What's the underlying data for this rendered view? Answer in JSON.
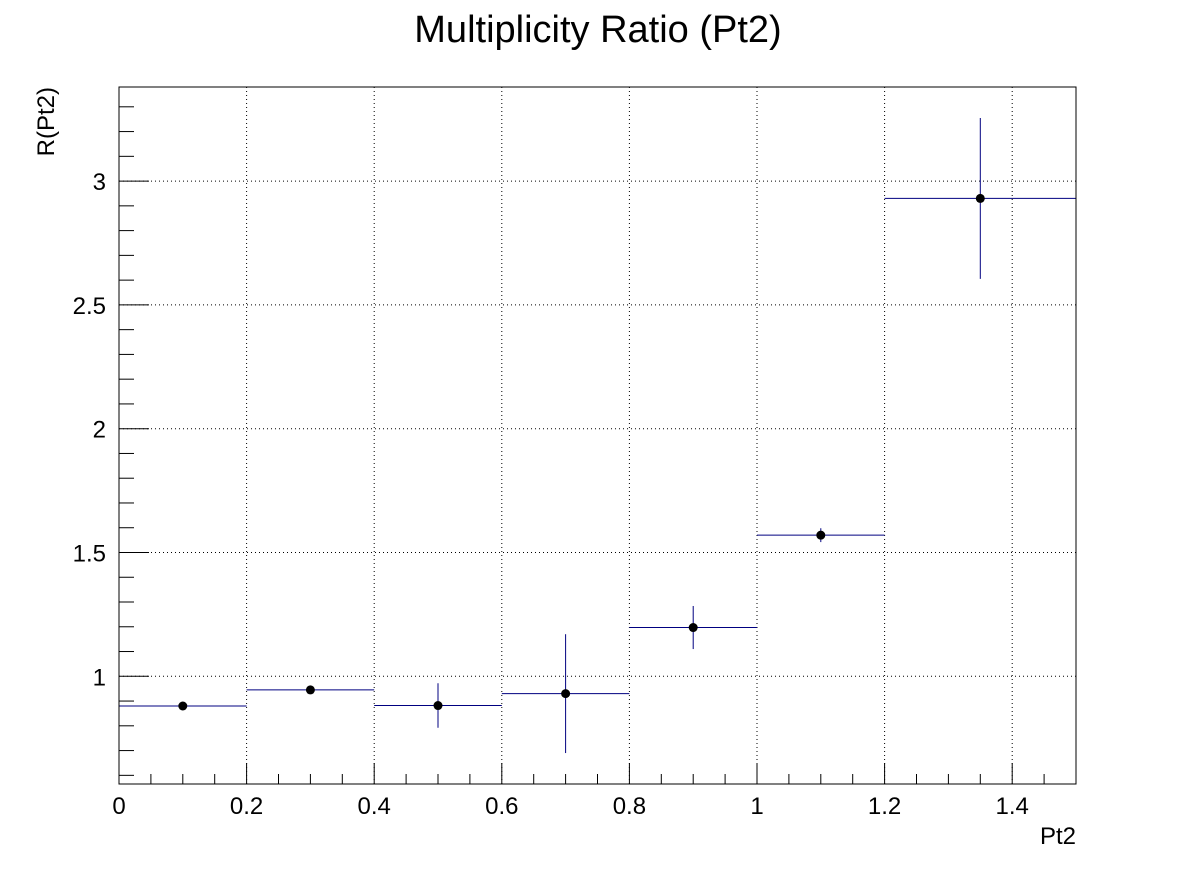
{
  "chart_data": {
    "type": "scatter",
    "title": "Multiplicity Ratio (Pt2)",
    "xlabel": "Pt2",
    "ylabel": "R(Pt2)",
    "xlim": [
      0,
      1.5
    ],
    "ylim": [
      0.565,
      3.38
    ],
    "grid": true,
    "x_ticks": [
      "0",
      "0.2",
      "0.4",
      "0.6",
      "0.8",
      "1",
      "1.2",
      "1.4"
    ],
    "y_ticks": [
      "1",
      "1.5",
      "2",
      "2.5",
      "3"
    ],
    "series": [
      {
        "marker_color": "#000000",
        "error_bar_color": "#000080",
        "points": [
          {
            "x": 0.1,
            "x_low": 0.0,
            "x_high": 0.2,
            "y": 0.88,
            "y_err": 0.012
          },
          {
            "x": 0.3,
            "x_low": 0.2,
            "x_high": 0.4,
            "y": 0.945,
            "y_err": 0.012
          },
          {
            "x": 0.5,
            "x_low": 0.4,
            "x_high": 0.6,
            "y": 0.882,
            "y_err": 0.09
          },
          {
            "x": 0.7,
            "x_low": 0.6,
            "x_high": 0.8,
            "y": 0.93,
            "y_err": 0.24
          },
          {
            "x": 0.9,
            "x_low": 0.8,
            "x_high": 1.0,
            "y": 1.197,
            "y_err": 0.087
          },
          {
            "x": 1.1,
            "x_low": 1.0,
            "x_high": 1.2,
            "y": 1.57,
            "y_err": 0.028
          },
          {
            "x": 1.35,
            "x_low": 1.2,
            "x_high": 1.5,
            "y": 2.93,
            "y_err": 0.325
          }
        ]
      }
    ]
  }
}
